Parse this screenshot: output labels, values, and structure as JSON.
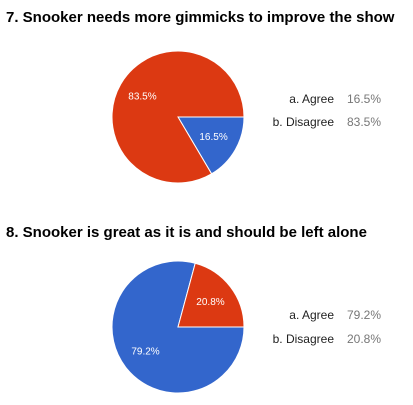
{
  "chart_data": [
    {
      "type": "pie",
      "title": "7. Snooker needs more gimmicks to improve the show",
      "categories": [
        "a. Agree",
        "b. Disagree"
      ],
      "values": [
        16.5,
        83.5
      ],
      "value_labels": [
        "16.5%",
        "83.5%"
      ],
      "colors": [
        "#3366cc",
        "#dc3912"
      ]
    },
    {
      "type": "pie",
      "title": "8. Snooker is great as it is and should be left alone",
      "categories": [
        "a. Agree",
        "b. Disagree"
      ],
      "values": [
        79.2,
        20.8
      ],
      "value_labels": [
        "79.2%",
        "20.8%"
      ],
      "colors": [
        "#3366cc",
        "#dc3912"
      ]
    }
  ]
}
